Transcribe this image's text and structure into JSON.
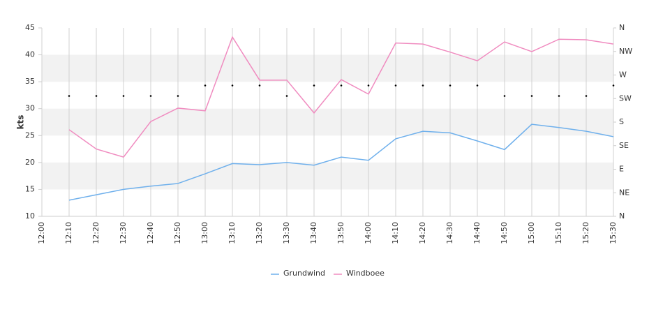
{
  "chart_data": {
    "type": "line",
    "y_label": "kts",
    "categories": [
      "12:00",
      "12:10",
      "12:20",
      "12:30",
      "12:40",
      "12:50",
      "13:00",
      "13:10",
      "13:20",
      "13:30",
      "13:40",
      "13:50",
      "14:00",
      "14:10",
      "14:20",
      "14:30",
      "14:40",
      "14:50",
      "15:00",
      "15:10",
      "15:20",
      "15:30"
    ],
    "series": [
      {
        "name": "Grundwind",
        "color": "#6fb0ec",
        "values": [
          null,
          13,
          14,
          15,
          15.6,
          16.1,
          17.9,
          19.8,
          19.6,
          20,
          19.5,
          21,
          20.4,
          24.4,
          25.8,
          25.5,
          24,
          22.4,
          27.1,
          26.5,
          25.8,
          24.8
        ]
      },
      {
        "name": "Windboee",
        "color": "#f08cc0",
        "values": [
          null,
          26.1,
          22.5,
          21,
          27.6,
          30.1,
          29.6,
          43.3,
          35.3,
          35.3,
          29.2,
          35.4,
          32.7,
          42.2,
          42,
          40.5,
          38.9,
          42.4,
          40.6,
          42.9,
          42.8,
          42
        ]
      }
    ],
    "direction": {
      "axis": "y2",
      "color": "#000000",
      "values": [
        null,
        230,
        230,
        230,
        230,
        230,
        250,
        250,
        250,
        230,
        250,
        250,
        250,
        250,
        250,
        250,
        250,
        230,
        230,
        230,
        230,
        250
      ]
    },
    "ylim": [
      10,
      45
    ],
    "yticks": [
      10,
      15,
      20,
      25,
      30,
      35,
      40,
      45
    ],
    "y2lim": [
      0,
      360
    ],
    "y2ticks": [
      {
        "value": 0,
        "label": "N"
      },
      {
        "value": 45,
        "label": "NE"
      },
      {
        "value": 90,
        "label": "E"
      },
      {
        "value": 135,
        "label": "SE"
      },
      {
        "value": 180,
        "label": "S"
      },
      {
        "value": 225,
        "label": "SW"
      },
      {
        "value": 270,
        "label": "W"
      },
      {
        "value": 315,
        "label": "NW"
      },
      {
        "value": 360,
        "label": "N"
      }
    ],
    "band_color": "#f2f2f2",
    "grid": true
  }
}
